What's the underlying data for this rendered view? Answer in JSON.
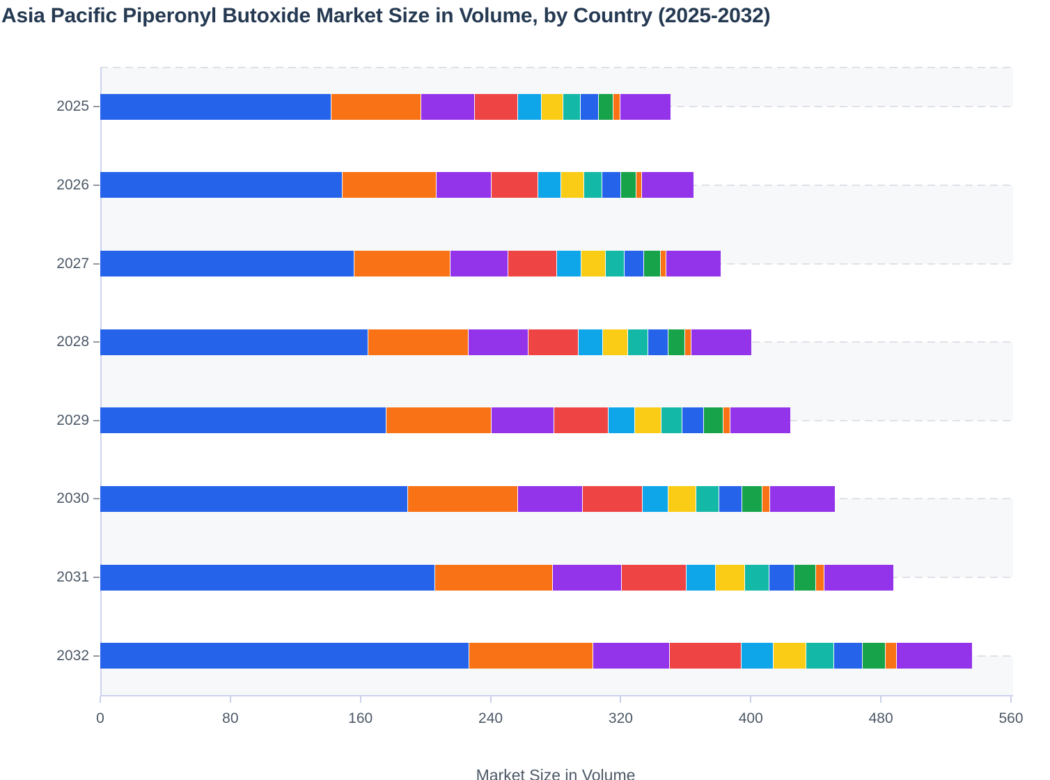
{
  "title": "Asia Pacific Piperonyl Butoxide Market Size in Volume, by Country (2025-2032)",
  "chart_data": {
    "type": "bar",
    "orientation": "horizontal",
    "stacked": true,
    "title": "Asia Pacific Piperonyl Butoxide Market Size in Volume, by Country (2025-2032)",
    "xlabel": "Market Size in Volume",
    "ylabel": "",
    "categories": [
      "2025",
      "2026",
      "2027",
      "2028",
      "2029",
      "2030",
      "2031",
      "2032"
    ],
    "xlim": [
      0,
      560
    ],
    "xticks": [
      0,
      80,
      160,
      240,
      320,
      400,
      480,
      560
    ],
    "grid": "horizontal-dashed",
    "legend": "none",
    "row_band_colors": [
      "#f7f8fa",
      "#ffffff"
    ],
    "series": [
      {
        "name": "segment-1-blue",
        "color": "#2563eb",
        "values": [
          142.0,
          148.8,
          156.3,
          165.0,
          175.8,
          189.1,
          206.0,
          226.9
        ]
      },
      {
        "name": "segment-2-orange",
        "color": "#f97316",
        "values": [
          55.4,
          57.8,
          59.2,
          61.4,
          64.8,
          67.6,
          72.4,
          76.4
        ]
      },
      {
        "name": "segment-3-purple",
        "color": "#9333ea",
        "values": [
          32.8,
          34.2,
          35.5,
          36.7,
          38.6,
          39.8,
          42.2,
          47.1
        ]
      },
      {
        "name": "segment-4-red",
        "color": "#ef4444",
        "values": [
          26.8,
          28.7,
          30.0,
          31.1,
          33.5,
          37.0,
          39.9,
          43.9
        ]
      },
      {
        "name": "segment-5-skyblue",
        "color": "#0ea5e9",
        "values": [
          14.3,
          13.9,
          14.8,
          14.9,
          16.2,
          15.8,
          17.8,
          19.7
        ]
      },
      {
        "name": "segment-6-yellow",
        "color": "#facc15",
        "values": [
          13.5,
          14.3,
          15.1,
          15.6,
          16.4,
          17.3,
          18.3,
          20.1
        ]
      },
      {
        "name": "segment-7-teal",
        "color": "#14b8a6",
        "values": [
          10.7,
          11.1,
          11.5,
          12.2,
          12.8,
          13.9,
          15.0,
          17.1
        ]
      },
      {
        "name": "segment-8-blue",
        "color": "#2563eb",
        "values": [
          11.1,
          11.6,
          12.0,
          12.6,
          13.1,
          14.2,
          15.4,
          17.6
        ]
      },
      {
        "name": "segment-9-green",
        "color": "#16a34a",
        "values": [
          8.9,
          9.2,
          10.1,
          10.0,
          12.0,
          12.5,
          13.3,
          14.1
        ]
      },
      {
        "name": "segment-10-orange",
        "color": "#f97316",
        "values": [
          4.3,
          3.7,
          3.8,
          4.2,
          4.1,
          4.8,
          5.0,
          6.8
        ]
      },
      {
        "name": "segment-11-purple",
        "color": "#9333ea",
        "values": [
          31.0,
          31.5,
          33.1,
          36.5,
          36.9,
          39.7,
          42.3,
          46.3
        ]
      }
    ],
    "totals": [
      350.8,
      364.8,
      381.4,
      400.2,
      424.2,
      451.7,
      487.6,
      536.0
    ]
  },
  "style_colors": {
    "title_text": "#253a52",
    "axis_text": "#4c5866",
    "axis_line": "#ccd2ee",
    "gridline": "#dfe1e6",
    "band_gray": "#f7f8fa"
  }
}
